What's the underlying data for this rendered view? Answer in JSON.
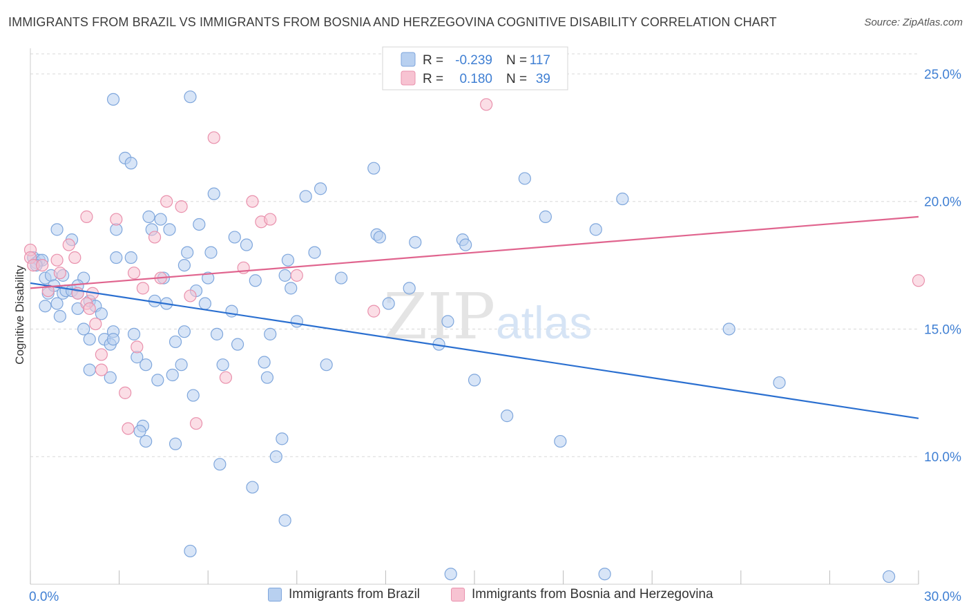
{
  "header": {
    "title": "IMMIGRANTS FROM BRAZIL VS IMMIGRANTS FROM BOSNIA AND HERZEGOVINA COGNITIVE DISABILITY CORRELATION CHART",
    "source": "Source: ZipAtlas.com"
  },
  "watermark": {
    "zip": "ZIP",
    "atlas": "atlas"
  },
  "colors": {
    "blue_fill": "#b8d0f0",
    "blue_stroke": "#7ea6dc",
    "blue_line": "#2a6fd0",
    "pink_fill": "#f7c3d2",
    "pink_stroke": "#e990ac",
    "pink_line": "#e0648e",
    "axis_text": "#3f7fd3",
    "grid": "#d8d8d8"
  },
  "stats_legend": {
    "rows": [
      {
        "series": "brazil",
        "r_label": "R =",
        "r_value": "-0.239",
        "n_label": "N =",
        "n_value": "117"
      },
      {
        "series": "bosnia",
        "r_label": "R =",
        "r_value": "0.180",
        "n_label": "N =",
        "n_value": "39"
      }
    ]
  },
  "legend": {
    "items": [
      {
        "series": "brazil",
        "label": "Immigrants from Brazil"
      },
      {
        "series": "bosnia",
        "label": "Immigrants from Bosnia and Herzegovina"
      }
    ]
  },
  "chart_data": {
    "type": "scatter",
    "title": "IMMIGRANTS FROM BRAZIL VS IMMIGRANTS FROM BOSNIA AND HERZEGOVINA COGNITIVE DISABILITY CORRELATION CHART",
    "xlabel": "",
    "ylabel": "Cognitive Disability",
    "xlim": [
      0,
      30
    ],
    "ylim": [
      5,
      26
    ],
    "x_ticks": [
      0,
      3,
      6,
      9,
      12,
      15,
      18,
      21,
      24,
      27,
      30
    ],
    "x_tick_labels": [
      {
        "value": 0,
        "label": "0.0%"
      },
      {
        "value": 30,
        "label": "30.0%"
      }
    ],
    "y_ticks": [
      {
        "value": 10,
        "label": "10.0%"
      },
      {
        "value": 15,
        "label": "15.0%"
      },
      {
        "value": 20,
        "label": "20.0%"
      },
      {
        "value": 25,
        "label": "25.0%"
      }
    ],
    "grid": true,
    "legend_position": "bottom",
    "series": [
      {
        "name": "Immigrants from Brazil",
        "key": "brazil",
        "trend": {
          "x": [
            0,
            30
          ],
          "y": [
            16.8,
            11.5
          ]
        },
        "points": [
          [
            0.1,
            17.8
          ],
          [
            0.2,
            17.6
          ],
          [
            0.3,
            17.7
          ],
          [
            0.4,
            17.7
          ],
          [
            0.2,
            17.5
          ],
          [
            0.5,
            17.0
          ],
          [
            0.6,
            16.4
          ],
          [
            0.5,
            15.9
          ],
          [
            0.7,
            17.1
          ],
          [
            0.9,
            16.0
          ],
          [
            1.0,
            15.5
          ],
          [
            1.1,
            16.4
          ],
          [
            1.2,
            16.5
          ],
          [
            1.4,
            16.5
          ],
          [
            1.6,
            16.4
          ],
          [
            1.6,
            15.8
          ],
          [
            1.8,
            15.0
          ],
          [
            1.8,
            17.0
          ],
          [
            2.0,
            14.6
          ],
          [
            2.0,
            16.1
          ],
          [
            2.2,
            15.9
          ],
          [
            2.4,
            15.6
          ],
          [
            2.5,
            14.6
          ],
          [
            2.7,
            14.4
          ],
          [
            2.8,
            14.9
          ],
          [
            2.8,
            14.6
          ],
          [
            2.0,
            13.4
          ],
          [
            2.7,
            13.1
          ],
          [
            1.4,
            18.5
          ],
          [
            0.9,
            18.9
          ],
          [
            1.1,
            17.1
          ],
          [
            0.8,
            16.7
          ],
          [
            1.6,
            16.7
          ],
          [
            2.8,
            24.0
          ],
          [
            2.9,
            18.9
          ],
          [
            2.9,
            17.8
          ],
          [
            3.2,
            21.7
          ],
          [
            3.4,
            21.5
          ],
          [
            3.4,
            17.8
          ],
          [
            3.5,
            14.8
          ],
          [
            3.6,
            13.9
          ],
          [
            3.8,
            11.2
          ],
          [
            3.7,
            11.0
          ],
          [
            3.9,
            10.6
          ],
          [
            3.9,
            13.6
          ],
          [
            4.0,
            19.4
          ],
          [
            4.1,
            18.9
          ],
          [
            4.2,
            16.1
          ],
          [
            4.3,
            13.0
          ],
          [
            4.4,
            19.3
          ],
          [
            4.6,
            16.0
          ],
          [
            4.5,
            17.0
          ],
          [
            4.7,
            18.9
          ],
          [
            4.8,
            13.2
          ],
          [
            4.9,
            10.5
          ],
          [
            4.9,
            14.5
          ],
          [
            5.1,
            13.6
          ],
          [
            5.2,
            14.9
          ],
          [
            5.2,
            17.5
          ],
          [
            5.3,
            18.0
          ],
          [
            5.4,
            24.1
          ],
          [
            5.5,
            12.4
          ],
          [
            5.6,
            16.5
          ],
          [
            5.7,
            19.1
          ],
          [
            5.9,
            16.0
          ],
          [
            6.0,
            17.0
          ],
          [
            6.1,
            18.0
          ],
          [
            6.2,
            20.3
          ],
          [
            6.3,
            14.8
          ],
          [
            6.4,
            9.7
          ],
          [
            6.5,
            13.6
          ],
          [
            6.8,
            15.7
          ],
          [
            6.9,
            18.6
          ],
          [
            7.0,
            14.4
          ],
          [
            7.3,
            18.3
          ],
          [
            7.5,
            8.8
          ],
          [
            7.6,
            16.9
          ],
          [
            7.9,
            13.7
          ],
          [
            8.0,
            13.1
          ],
          [
            8.1,
            14.8
          ],
          [
            8.3,
            10.0
          ],
          [
            8.5,
            10.7
          ],
          [
            8.6,
            17.1
          ],
          [
            8.6,
            7.5
          ],
          [
            8.8,
            16.6
          ],
          [
            8.7,
            17.7
          ],
          [
            9.0,
            15.3
          ],
          [
            9.3,
            20.2
          ],
          [
            9.6,
            18.0
          ],
          [
            9.8,
            20.5
          ],
          [
            10.0,
            13.6
          ],
          [
            10.5,
            17.0
          ],
          [
            11.6,
            21.3
          ],
          [
            11.7,
            18.7
          ],
          [
            11.8,
            18.6
          ],
          [
            12.1,
            16.0
          ],
          [
            12.8,
            16.6
          ],
          [
            13.0,
            18.4
          ],
          [
            13.8,
            14.4
          ],
          [
            14.1,
            15.3
          ],
          [
            14.2,
            5.4
          ],
          [
            14.6,
            18.5
          ],
          [
            14.7,
            18.3
          ],
          [
            15.0,
            13.0
          ],
          [
            16.1,
            11.6
          ],
          [
            16.7,
            20.9
          ],
          [
            17.4,
            19.4
          ],
          [
            17.9,
            10.6
          ],
          [
            19.1,
            18.9
          ],
          [
            19.4,
            5.4
          ],
          [
            20.0,
            20.1
          ],
          [
            23.6,
            15.0
          ],
          [
            25.3,
            12.9
          ],
          [
            29.0,
            5.3
          ],
          [
            5.4,
            6.3
          ]
        ]
      },
      {
        "name": "Immigrants from Bosnia and Herzegovina",
        "key": "bosnia",
        "trend": {
          "x": [
            0,
            30
          ],
          "y": [
            16.6,
            19.4
          ]
        },
        "points": [
          [
            0.0,
            18.1
          ],
          [
            0.0,
            17.8
          ],
          [
            0.1,
            17.5
          ],
          [
            0.4,
            17.5
          ],
          [
            0.6,
            16.5
          ],
          [
            0.9,
            17.7
          ],
          [
            1.0,
            17.2
          ],
          [
            1.3,
            18.3
          ],
          [
            1.5,
            17.8
          ],
          [
            1.6,
            16.4
          ],
          [
            1.9,
            16.0
          ],
          [
            2.0,
            15.8
          ],
          [
            2.1,
            16.4
          ],
          [
            1.9,
            19.4
          ],
          [
            2.2,
            15.2
          ],
          [
            2.4,
            13.4
          ],
          [
            2.4,
            14.0
          ],
          [
            2.9,
            19.3
          ],
          [
            3.2,
            12.5
          ],
          [
            3.3,
            11.1
          ],
          [
            3.5,
            17.2
          ],
          [
            3.6,
            14.3
          ],
          [
            3.8,
            16.6
          ],
          [
            4.2,
            18.6
          ],
          [
            4.4,
            17.0
          ],
          [
            4.6,
            20.0
          ],
          [
            5.1,
            19.8
          ],
          [
            5.4,
            16.3
          ],
          [
            5.6,
            11.3
          ],
          [
            6.2,
            22.5
          ],
          [
            6.6,
            13.1
          ],
          [
            7.2,
            17.4
          ],
          [
            7.5,
            20.0
          ],
          [
            7.8,
            19.2
          ],
          [
            8.1,
            19.3
          ],
          [
            9.0,
            17.1
          ],
          [
            11.6,
            15.7
          ],
          [
            15.4,
            23.8
          ],
          [
            30.0,
            16.9
          ]
        ]
      }
    ]
  }
}
